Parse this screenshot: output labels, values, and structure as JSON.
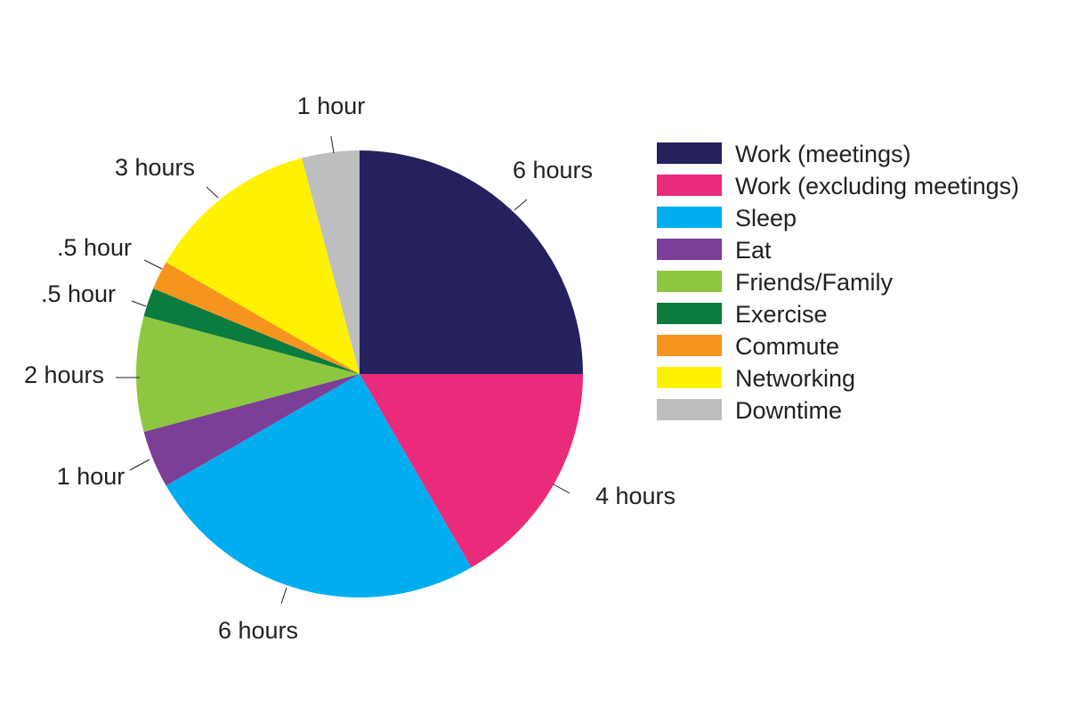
{
  "chart_data": {
    "type": "pie",
    "unit": "hours",
    "start_angle_deg": 0,
    "direction": "clockwise",
    "slices": [
      {
        "name": "Work (meetings)",
        "value": 6,
        "label": "6 hours",
        "color": "#25215e"
      },
      {
        "name": "Work (excluding meetings)",
        "value": 4,
        "label": "4 hours",
        "color": "#ea2a7b"
      },
      {
        "name": "Sleep",
        "value": 6,
        "label": "6 hours",
        "color": "#00aeef"
      },
      {
        "name": "Eat",
        "value": 1,
        "label": "1 hour",
        "color": "#7c3f98"
      },
      {
        "name": "Friends/Family",
        "value": 2,
        "label": "2 hours",
        "color": "#8dc63f"
      },
      {
        "name": "Exercise",
        "value": 0.5,
        "label": ".5 hour",
        "color": "#0b7b3e"
      },
      {
        "name": "Commute",
        "value": 0.5,
        "label": ".5 hour",
        "color": "#f7941d"
      },
      {
        "name": "Networking",
        "value": 3,
        "label": "3 hours",
        "color": "#fff200"
      },
      {
        "name": "Downtime",
        "value": 1,
        "label": "1 hour",
        "color": "#bcbec0"
      }
    ],
    "legend": {
      "position": "right",
      "items": [
        {
          "label": "Work (meetings)",
          "color": "#25215e"
        },
        {
          "label": "Work (excluding meetings)",
          "color": "#ea2a7b"
        },
        {
          "label": "Sleep",
          "color": "#00aeef"
        },
        {
          "label": "Eat",
          "color": "#7c3f98"
        },
        {
          "label": "Friends/Family",
          "color": "#8dc63f"
        },
        {
          "label": "Exercise",
          "color": "#0b7b3e"
        },
        {
          "label": "Commute",
          "color": "#f7941d"
        },
        {
          "label": "Networking",
          "color": "#fff200"
        },
        {
          "label": "Downtime",
          "color": "#bcbec0"
        }
      ]
    }
  }
}
